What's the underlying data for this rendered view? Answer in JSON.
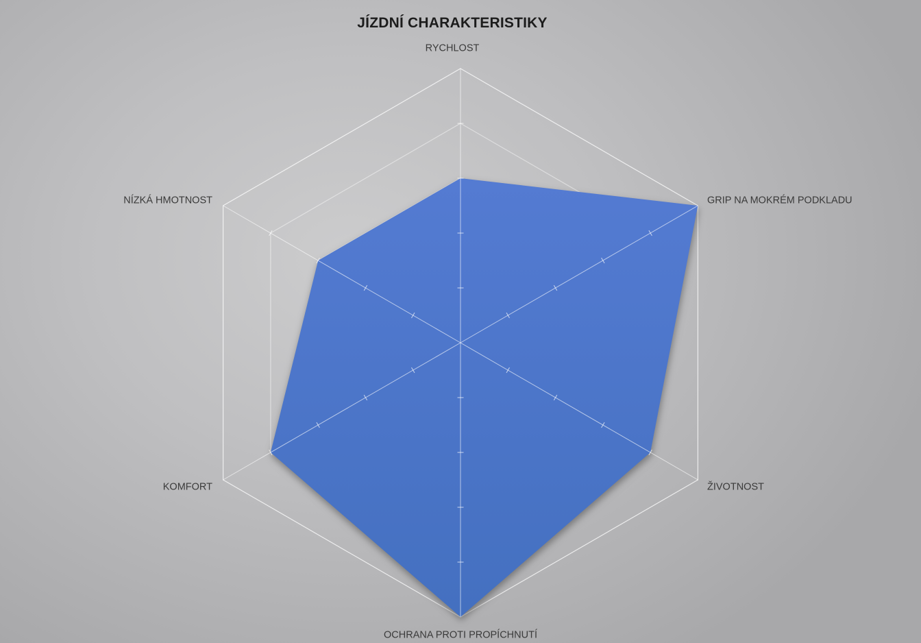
{
  "title": "JÍZDNÍ CHARAKTERISTIKY",
  "chart_data": {
    "type": "radar",
    "title": "JÍZDNÍ CHARAKTERISTIKY",
    "categories": [
      "RYCHLOST",
      "GRIP NA MOKRÉM PODKLADU",
      "ŽIVOTNOST",
      "OCHRANA PROTI PROPÍCHNUTÍ",
      "KOMFORT",
      "NÍZKÁ HMOTNOST"
    ],
    "series": [
      {
        "name": "JÍZDNÍ CHARAKTERISTIKY",
        "values": [
          3,
          5,
          4,
          5,
          4,
          3
        ]
      }
    ],
    "scale": {
      "min": 0,
      "max": 5,
      "ring_interval": 1
    },
    "grid": {
      "shape": "hexagon-web",
      "rings": [
        1,
        2,
        3,
        4,
        5
      ],
      "radial_axes": true,
      "axis_ticks": [
        1,
        2,
        3,
        4
      ]
    },
    "legend": "none",
    "colors": {
      "series_fill_top": "#547bd2",
      "series_fill_bottom": "#4470c0",
      "grid_line": "#ffffff",
      "title_text": "#1c1c1c",
      "label_text": "#3a3a3a",
      "background_light": "#cccccd",
      "background_dark": "#a8a8aa"
    }
  }
}
